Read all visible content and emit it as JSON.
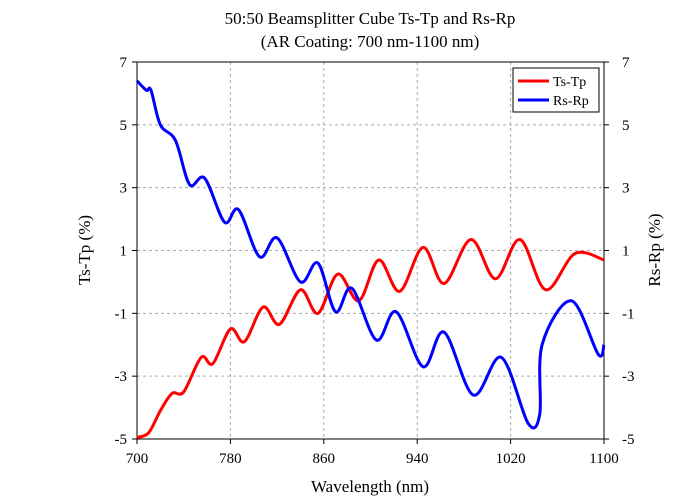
{
  "chart_data": {
    "type": "line",
    "title": "50:50 Beamsplitter Cube  Ts-Tp and Rs-Rp",
    "subtitle": "(AR Coating: 700 nm-1100 nm)",
    "x_label": "Wavelength (nm)",
    "y_label": "Ts-Tp (%)",
    "y2_label": "Rs-Rp (%)",
    "xlim": [
      700,
      1100
    ],
    "xticks": [
      700,
      780,
      860,
      940,
      1020,
      1100
    ],
    "ylim": [
      -5,
      7
    ],
    "yticks": [
      -5,
      -3,
      -1,
      1,
      3,
      5,
      7
    ],
    "y2lim": [
      -5,
      7
    ],
    "y2ticks": [
      -5,
      -3,
      -1,
      1,
      3,
      5,
      7
    ],
    "grid": true,
    "legend": "top-right",
    "series": [
      {
        "name": "Ts-Tp",
        "color": "#ff0000",
        "x": [
          700,
          710,
          720,
          730,
          740,
          755,
          765,
          780,
          792,
          808,
          822,
          840,
          855,
          872,
          890,
          907,
          925,
          945,
          963,
          986,
          1007,
          1028,
          1050,
          1075,
          1100
        ],
        "values": [
          -4.95,
          -4.8,
          -4.1,
          -3.55,
          -3.5,
          -2.4,
          -2.6,
          -1.5,
          -1.9,
          -0.8,
          -1.35,
          -0.25,
          -1.0,
          0.25,
          -0.6,
          0.7,
          -0.3,
          1.1,
          -0.05,
          1.35,
          0.1,
          1.35,
          -0.25,
          0.9,
          0.7
        ]
      },
      {
        "name": "Rs-Rp",
        "color": "#0000ff",
        "axis": "y2",
        "x": [
          700,
          708,
          712,
          720,
          733,
          745,
          758,
          775,
          787,
          805,
          820,
          840,
          855,
          870,
          884,
          905,
          922,
          945,
          963,
          988,
          1012,
          1035,
          1045,
          1047,
          1072,
          1095,
          1100
        ],
        "values": [
          6.4,
          6.1,
          6.1,
          5.0,
          4.5,
          3.1,
          3.3,
          1.9,
          2.3,
          0.8,
          1.4,
          0.0,
          0.6,
          -0.95,
          -0.2,
          -1.85,
          -0.95,
          -2.7,
          -1.6,
          -3.6,
          -2.4,
          -4.5,
          -4.2,
          -2.0,
          -0.6,
          -2.3,
          -2.0
        ]
      }
    ]
  }
}
